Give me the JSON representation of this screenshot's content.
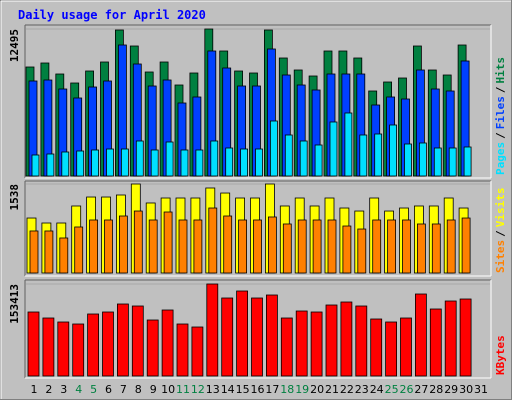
{
  "title": "Daily usage for April 2020",
  "legend_separator": "/",
  "chart_data": [
    {
      "type": "bar",
      "categories": [
        "1",
        "2",
        "3",
        "4",
        "5",
        "6",
        "7",
        "8",
        "9",
        "10",
        "11",
        "12",
        "13",
        "14",
        "15",
        "16",
        "17",
        "18",
        "19",
        "20",
        "21",
        "22",
        "23",
        "24",
        "25",
        "26",
        "27",
        "28",
        "29",
        "30",
        "31"
      ],
      "highlight_categories": [
        "4",
        "5",
        "11",
        "12",
        "18",
        "19",
        "25",
        "26"
      ],
      "highlight_color": "#008040",
      "ylim": [
        0,
        12495
      ],
      "yticks": [
        12495
      ],
      "series": [
        {
          "name": "Pages",
          "color": "#00e0ff",
          "values": [
            1785,
            1870,
            2040,
            2125,
            2210,
            2295,
            2295,
            2975,
            2210,
            2890,
            2210,
            2210,
            2975,
            2380,
            2295,
            2295,
            4675,
            3485,
            2975,
            2635,
            4590,
            5355,
            3485,
            3570,
            4335,
            2720,
            2805,
            2380,
            2380,
            2465,
            null
          ]
        },
        {
          "name": "Files",
          "color": "#0040ff",
          "values": [
            8075,
            8160,
            7395,
            6630,
            7565,
            8075,
            11135,
            9520,
            7650,
            8160,
            6205,
            6715,
            10625,
            9180,
            7650,
            7650,
            10795,
            8585,
            7735,
            7310,
            8670,
            8670,
            8670,
            6035,
            6715,
            6545,
            9010,
            7395,
            7225,
            9775,
            null
          ]
        },
        {
          "name": "Hits",
          "color": "#008040",
          "values": [
            9265,
            9605,
            8670,
            7905,
            8925,
            9690,
            12410,
            11050,
            8840,
            9690,
            7735,
            8755,
            12495,
            10625,
            8925,
            8755,
            12410,
            10030,
            9010,
            8500,
            10625,
            10625,
            10030,
            7225,
            7990,
            8330,
            11050,
            9010,
            8585,
            11135,
            null
          ]
        }
      ]
    },
    {
      "type": "bar",
      "categories": [
        "1",
        "2",
        "3",
        "4",
        "5",
        "6",
        "7",
        "8",
        "9",
        "10",
        "11",
        "12",
        "13",
        "14",
        "15",
        "16",
        "17",
        "18",
        "19",
        "20",
        "21",
        "22",
        "23",
        "24",
        "25",
        "26",
        "27",
        "28",
        "29",
        "30",
        "31"
      ],
      "ylim": [
        0,
        1538
      ],
      "yticks": [
        1538
      ],
      "series": [
        {
          "name": "Sites",
          "color": "#ff8000",
          "values": [
            726,
            726,
            605,
            795,
            916,
            916,
            985,
            1071,
            916,
            1054,
            916,
            916,
            1123,
            985,
            916,
            916,
            968,
            847,
            916,
            916,
            916,
            812,
            760,
            916,
            916,
            916,
            847,
            847,
            916,
            950,
            null
          ]
        },
        {
          "name": "Visits",
          "color": "#ffff00",
          "values": [
            950,
            864,
            864,
            1158,
            1313,
            1313,
            1348,
            1538,
            1210,
            1296,
            1296,
            1296,
            1469,
            1382,
            1296,
            1296,
            1538,
            1158,
            1296,
            1158,
            1296,
            1123,
            1071,
            1296,
            1071,
            1123,
            1158,
            1158,
            1296,
            1123,
            null
          ]
        }
      ]
    },
    {
      "type": "bar",
      "categories": [
        "1",
        "2",
        "3",
        "4",
        "5",
        "6",
        "7",
        "8",
        "9",
        "10",
        "11",
        "12",
        "13",
        "14",
        "15",
        "16",
        "17",
        "18",
        "19",
        "20",
        "21",
        "22",
        "23",
        "24",
        "25",
        "26",
        "27",
        "28",
        "29",
        "30",
        "31"
      ],
      "highlight_categories": [
        "4",
        "5",
        "11",
        "12",
        "18",
        "19",
        "25",
        "26"
      ],
      "highlight_color": "#008040",
      "ylim": [
        0,
        153413
      ],
      "yticks": [
        153413
      ],
      "series": [
        {
          "name": "KBytes",
          "color": "#ff0000",
          "values": [
            106720,
            96715,
            90045,
            86710,
            103385,
            106720,
            120060,
            116725,
            93380,
            110055,
            86710,
            81708,
            153413,
            130065,
            141738,
            130065,
            135068,
            96715,
            108388,
            106720,
            118393,
            123395,
            116725,
            95048,
            90045,
            96715,
            136735,
            111723,
            125063,
            128398,
            null
          ]
        }
      ]
    }
  ]
}
